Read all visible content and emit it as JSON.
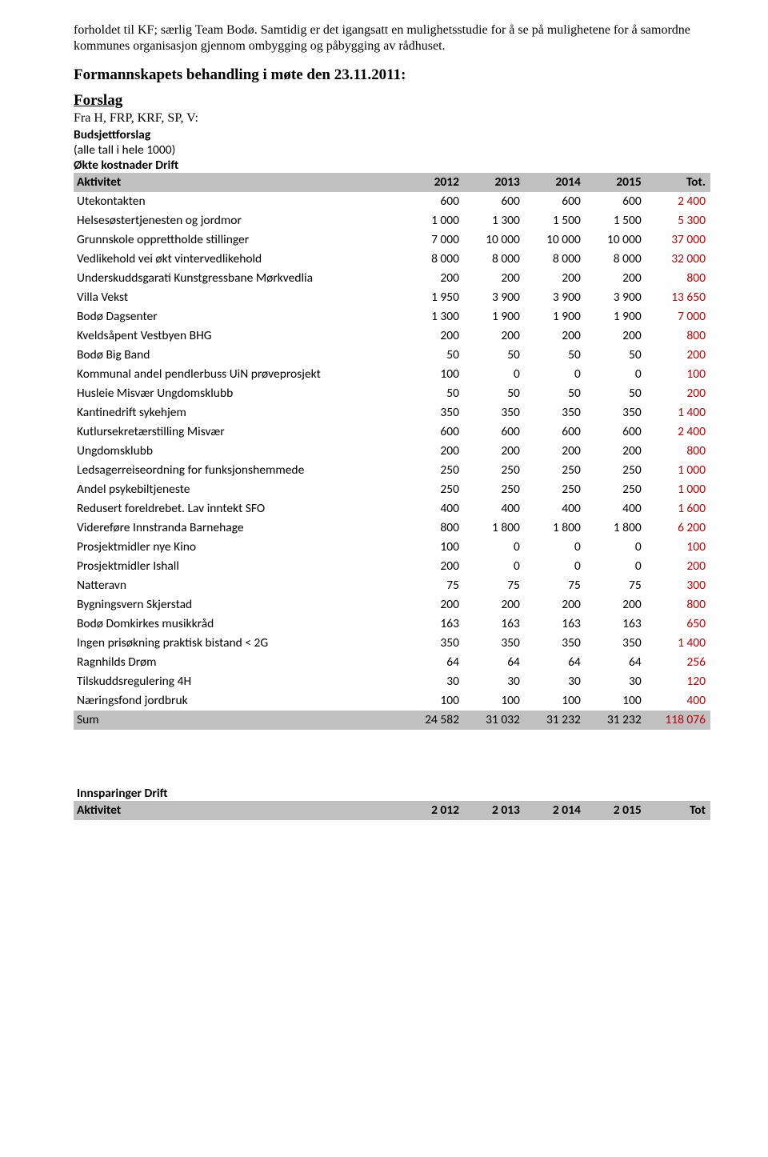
{
  "intro": {
    "paragraph": "forholdet til KF; særlig Team Bodø. Samtidig er det igangsatt en mulighetsstudie for å se på mulighetene for å samordne kommunes organisasjon gjennom ombygging og påbygging av rådhuset."
  },
  "heading": "Formannskapets behandling i møte den 23.11.2011:",
  "subheading": "Forslag",
  "source_line": "Fra H, FRP, KRF, SP, V:",
  "budget_label": "Budsjettforslag",
  "note_line": "(alle tall i hele 1000)",
  "table1": {
    "title": "Økte kostnader Drift",
    "header": [
      "Aktivitet",
      "2012",
      "2013",
      "2014",
      "2015",
      "Tot."
    ],
    "rows": [
      {
        "label": "Utekontakten",
        "v": [
          "600",
          "600",
          "600",
          "600"
        ],
        "t": "2 400"
      },
      {
        "label": "Helsesøstertjenesten og jordmor",
        "v": [
          "1 000",
          "1 300",
          "1 500",
          "1 500"
        ],
        "t": "5 300"
      },
      {
        "label": "Grunnskole opprettholde stillinger",
        "v": [
          "7 000",
          "10 000",
          "10 000",
          "10 000"
        ],
        "t": "37 000"
      },
      {
        "label": "Vedlikehold vei økt vintervedlikehold",
        "v": [
          "8 000",
          "8 000",
          "8 000",
          "8 000"
        ],
        "t": "32 000"
      },
      {
        "label": "Underskuddsgarati Kunstgressbane Mørkvedlia",
        "v": [
          "200",
          "200",
          "200",
          "200"
        ],
        "t": "800"
      },
      {
        "label": "Villa Vekst",
        "v": [
          "1 950",
          "3 900",
          "3 900",
          "3 900"
        ],
        "t": "13 650"
      },
      {
        "label": "Bodø Dagsenter",
        "v": [
          "1 300",
          "1 900",
          "1 900",
          "1 900"
        ],
        "t": "7 000"
      },
      {
        "label": "Kveldsåpent Vestbyen BHG",
        "v": [
          "200",
          "200",
          "200",
          "200"
        ],
        "t": "800"
      },
      {
        "label": "Bodø Big Band",
        "v": [
          "50",
          "50",
          "50",
          "50"
        ],
        "t": "200"
      },
      {
        "label": "Kommunal andel pendlerbuss UiN prøveprosjekt",
        "v": [
          "100",
          "0",
          "0",
          "0"
        ],
        "t": "100"
      },
      {
        "label": "Husleie Misvær Ungdomsklubb",
        "v": [
          "50",
          "50",
          "50",
          "50"
        ],
        "t": "200"
      },
      {
        "label": "Kantinedrift sykehjem",
        "v": [
          "350",
          "350",
          "350",
          "350"
        ],
        "t": "1 400"
      },
      {
        "label": "Kutlursekretærstilling Misvær",
        "v": [
          "600",
          "600",
          "600",
          "600"
        ],
        "t": "2 400"
      },
      {
        "label": "Ungdomsklubb",
        "v": [
          "200",
          "200",
          "200",
          "200"
        ],
        "t": "800"
      },
      {
        "label": "Ledsagerreiseordning for funksjonshemmede",
        "v": [
          "250",
          "250",
          "250",
          "250"
        ],
        "t": "1 000"
      },
      {
        "label": "Andel psykebiltjeneste",
        "v": [
          "250",
          "250",
          "250",
          "250"
        ],
        "t": "1 000"
      },
      {
        "label": "Redusert foreldrebet. Lav inntekt SFO",
        "v": [
          "400",
          "400",
          "400",
          "400"
        ],
        "t": "1 600"
      },
      {
        "label": "Videreføre Innstranda Barnehage",
        "v": [
          "800",
          "1 800",
          "1 800",
          "1 800"
        ],
        "t": "6 200"
      },
      {
        "label": "Prosjektmidler nye Kino",
        "v": [
          "100",
          "0",
          "0",
          "0"
        ],
        "t": "100"
      },
      {
        "label": "Prosjektmidler Ishall",
        "v": [
          "200",
          "0",
          "0",
          "0"
        ],
        "t": "200"
      },
      {
        "label": "Natteravn",
        "v": [
          "75",
          "75",
          "75",
          "75"
        ],
        "t": "300"
      },
      {
        "label": "Bygningsvern Skjerstad",
        "v": [
          "200",
          "200",
          "200",
          "200"
        ],
        "t": "800"
      },
      {
        "label": "Bodø Domkirkes musikkråd",
        "v": [
          "163",
          "163",
          "163",
          "163"
        ],
        "t": "650"
      },
      {
        "label": "Ingen prisøkning praktisk bistand < 2G",
        "v": [
          "350",
          "350",
          "350",
          "350"
        ],
        "t": "1 400"
      },
      {
        "label": "Ragnhilds Drøm",
        "v": [
          "64",
          "64",
          "64",
          "64"
        ],
        "t": "256"
      },
      {
        "label": "Tilskuddsregulering 4H",
        "v": [
          "30",
          "30",
          "30",
          "30"
        ],
        "t": "120"
      },
      {
        "label": "Næringsfond jordbruk",
        "v": [
          "100",
          "100",
          "100",
          "100"
        ],
        "t": "400"
      }
    ],
    "sum": {
      "label": "Sum",
      "v": [
        "24 582",
        "31 032",
        "31 232",
        "31 232"
      ],
      "t": "118 076"
    }
  },
  "table2": {
    "title": "Innsparinger Drift",
    "header": [
      "Aktivitet",
      "2 012",
      "2 013",
      "2 014",
      "2 015",
      "Tot"
    ]
  },
  "colors": {
    "header_bg": "#c0c0c0",
    "total_text": "#c00000",
    "body_bg": "#ffffff",
    "text": "#000000"
  }
}
